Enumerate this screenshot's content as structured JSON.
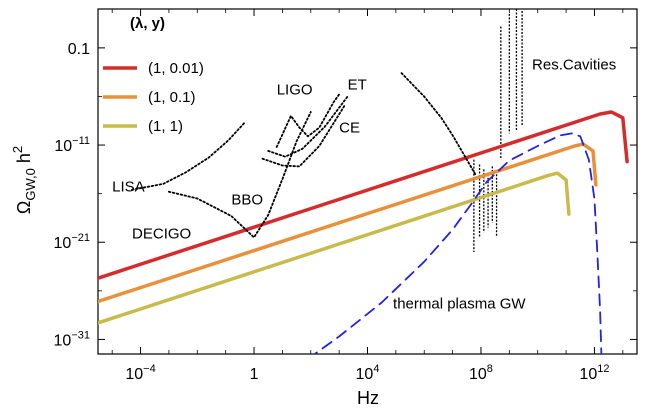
{
  "chart_data": {
    "type": "line",
    "xlabel": "Hz",
    "ylabel": "Ω_GW,0 h²",
    "xscale": "log10",
    "yscale": "log10",
    "xlim_log10": [
      -5.5,
      13.5
    ],
    "ylim_log10": [
      -32.5,
      3
    ],
    "xticks": [
      {
        "log10": -4,
        "label": "10",
        "exp": "−4"
      },
      {
        "log10": 0,
        "label": "1",
        "exp": ""
      },
      {
        "log10": 4,
        "label": "10",
        "exp": "4"
      },
      {
        "log10": 8,
        "label": "10",
        "exp": "8"
      },
      {
        "log10": 12,
        "label": "10",
        "exp": "12"
      }
    ],
    "yticks": [
      {
        "log10": -1,
        "label": "0.1",
        "exp": ""
      },
      {
        "log10": -11,
        "label": "10",
        "exp": "−11"
      },
      {
        "log10": -21,
        "label": "10",
        "exp": "−21"
      },
      {
        "log10": -31,
        "label": "10",
        "exp": "−31"
      }
    ],
    "legend": {
      "title": "(λ, y)",
      "placement": "top-left"
    },
    "series": [
      {
        "name": "(1, 0.01)",
        "color": "#d62b2b",
        "style": "solid",
        "points_log10": [
          [
            -5.5,
            -24.7
          ],
          [
            12.2,
            -7.8
          ],
          [
            12.6,
            -7.6
          ],
          [
            13.0,
            -8.2
          ],
          [
            13.15,
            -12.7
          ]
        ]
      },
      {
        "name": "(1, 0.1)",
        "color": "#e8903a",
        "style": "solid",
        "points_log10": [
          [
            -5.5,
            -27.1
          ],
          [
            11.3,
            -11.1
          ],
          [
            11.6,
            -10.9
          ],
          [
            11.95,
            -11.6
          ],
          [
            12.05,
            -15.1
          ]
        ]
      },
      {
        "name": "(1, 1)",
        "color": "#c8bb4c",
        "style": "solid",
        "points_log10": [
          [
            -5.5,
            -29.3
          ],
          [
            10.4,
            -14.1
          ],
          [
            10.7,
            -13.9
          ],
          [
            11.0,
            -14.6
          ],
          [
            11.1,
            -18.1
          ]
        ]
      },
      {
        "name": "thermal plasma GW",
        "color": "#2323e0",
        "style": "dashed",
        "points_log10": [
          [
            1.9,
            -33.0
          ],
          [
            3.0,
            -30.7
          ],
          [
            4.5,
            -27.2
          ],
          [
            6.0,
            -23.0
          ],
          [
            7.0,
            -19.7
          ],
          [
            7.7,
            -16.9
          ],
          [
            8.2,
            -14.8
          ],
          [
            9.0,
            -12.6
          ],
          [
            10.0,
            -11.1
          ],
          [
            10.8,
            -10.0
          ],
          [
            11.2,
            -9.8
          ],
          [
            11.5,
            -10.1
          ],
          [
            11.8,
            -12.5
          ],
          [
            12.0,
            -16.5
          ],
          [
            12.1,
            -22.0
          ],
          [
            12.2,
            -28.0
          ],
          [
            12.25,
            -33.0
          ]
        ]
      },
      {
        "name": "LISA",
        "color": "#000000",
        "style": "dotted",
        "points_log10": [
          [
            -4.3,
            -15.6
          ],
          [
            -3.2,
            -15.0
          ],
          [
            -2.4,
            -13.8
          ],
          [
            -1.6,
            -12.3
          ],
          [
            -0.9,
            -10.5
          ],
          [
            -0.3,
            -8.6
          ]
        ]
      },
      {
        "name": "DECIGO/BBO",
        "color": "#000000",
        "style": "dotted",
        "points_log10": [
          [
            -3.0,
            -15.8
          ],
          [
            -2.0,
            -16.5
          ],
          [
            -0.8,
            -18.3
          ],
          [
            0.0,
            -20.5
          ],
          [
            0.5,
            -18.2
          ],
          [
            1.0,
            -14.5
          ],
          [
            1.5,
            -10.6
          ],
          [
            2.0,
            -7.6
          ]
        ]
      },
      {
        "name": "LIGO",
        "color": "#000000",
        "style": "dotted",
        "points_log10": [
          [
            0.8,
            -11.2
          ],
          [
            1.3,
            -8.0
          ],
          [
            1.6,
            -9.2
          ],
          [
            1.9,
            -10.1
          ],
          [
            2.3,
            -9.2
          ],
          [
            2.8,
            -6.6
          ],
          [
            3.0,
            -5.8
          ]
        ]
      },
      {
        "name": "ET",
        "color": "#000000",
        "style": "dotted",
        "points_log10": [
          [
            0.3,
            -12.4
          ],
          [
            1.0,
            -13.1
          ],
          [
            1.6,
            -13.2
          ],
          [
            2.3,
            -11.1
          ],
          [
            3.2,
            -6.9
          ]
        ]
      },
      {
        "name": "CE",
        "color": "#000000",
        "style": "dotted",
        "points_log10": [
          [
            0.5,
            -11.6
          ],
          [
            1.1,
            -12.2
          ],
          [
            1.7,
            -11.4
          ],
          [
            2.5,
            -9.1
          ],
          [
            3.3,
            -6.0
          ]
        ]
      },
      {
        "name": "Res.Cavities curve",
        "color": "#000000",
        "style": "dotted",
        "points_log10": [
          [
            5.2,
            -3.6
          ],
          [
            6.0,
            -6.0
          ],
          [
            6.6,
            -8.2
          ],
          [
            7.0,
            -10.0
          ],
          [
            7.4,
            -12.0
          ],
          [
            7.8,
            -14.0
          ]
        ]
      }
    ],
    "cavity_spikes_log10": [
      {
        "x": 7.75,
        "y_top": -12.5,
        "y_bottom": -22.0
      },
      {
        "x": 7.95,
        "y_top": -13.0,
        "y_bottom": -20.5
      },
      {
        "x": 8.1,
        "y_top": -13.5,
        "y_bottom": -20.0
      },
      {
        "x": 8.25,
        "y_top": -14.0,
        "y_bottom": -19.5
      },
      {
        "x": 8.4,
        "y_top": -13.2,
        "y_bottom": -19.0
      },
      {
        "x": 8.55,
        "y_top": -14.0,
        "y_bottom": -20.5
      },
      {
        "x": 8.7,
        "y_top": 1.2,
        "y_bottom": -12.5
      },
      {
        "x": 9.0,
        "y_top": 2.5,
        "y_bottom": -9.8
      },
      {
        "x": 9.25,
        "y_top": 3.0,
        "y_bottom": -9.5
      },
      {
        "x": 9.45,
        "y_top": 2.8,
        "y_bottom": -9.0
      }
    ],
    "annotations": [
      {
        "text": "LIGO",
        "x_log10": 0.8,
        "y_log10": -5.8
      },
      {
        "text": "ET",
        "x_log10": 3.3,
        "y_log10": -5.3
      },
      {
        "text": "CE",
        "x_log10": 3.0,
        "y_log10": -9.7
      },
      {
        "text": "LISA",
        "x_log10": -5.0,
        "y_log10": -15.8
      },
      {
        "text": "BBO",
        "x_log10": -0.8,
        "y_log10": -17.1
      },
      {
        "text": "DECIGO",
        "x_log10": -4.3,
        "y_log10": -20.6
      },
      {
        "text": "Res.Cavities",
        "x_log10": 9.8,
        "y_log10": -3.2
      },
      {
        "text": "thermal plasma GW",
        "x_log10": 4.9,
        "y_log10": -27.8
      }
    ]
  }
}
